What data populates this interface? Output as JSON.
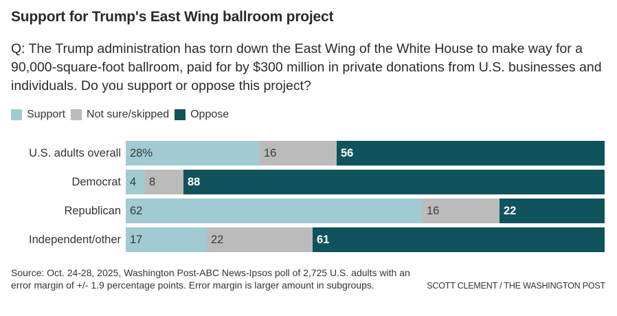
{
  "title": "Support for Trump's East Wing ballroom project",
  "question": "Q: The Trump administration has torn down the East Wing of the White House to make way for a 90,000-square-foot ballroom, paid for by $300 million in private donations from U.S. businesses and individuals. Do you support or oppose this project?",
  "legend": [
    {
      "label": "Support",
      "color": "#a1cad2"
    },
    {
      "label": "Not sure/skipped",
      "color": "#bbbbbb"
    },
    {
      "label": "Oppose",
      "color": "#10535c"
    }
  ],
  "chart_data": {
    "type": "bar",
    "orientation": "horizontal",
    "stacked": true,
    "normalized": true,
    "title": "Support for Trump's East Wing ballroom project",
    "xlabel": "",
    "ylabel": "",
    "xlim": [
      0,
      100
    ],
    "grid": false,
    "legend_position": "top-left",
    "categories": [
      "U.S. adults overall",
      "Democrat",
      "Republican",
      "Independent/other"
    ],
    "series": [
      {
        "name": "Support",
        "color": "#a1cad2",
        "label_color": "#2f3b3f",
        "values": [
          28,
          4,
          62,
          17
        ]
      },
      {
        "name": "Not sure/skipped",
        "color": "#bbbbbb",
        "label_color": "#3a3a3a",
        "values": [
          16,
          8,
          16,
          22
        ]
      },
      {
        "name": "Oppose",
        "color": "#10535c",
        "label_color": "#ffffff",
        "values": [
          56,
          88,
          22,
          61
        ]
      }
    ],
    "value_labels": [
      [
        "28%",
        "16",
        "56"
      ],
      [
        "4",
        "8",
        "88"
      ],
      [
        "62",
        "16",
        "22"
      ],
      [
        "17",
        "22",
        "61"
      ]
    ]
  },
  "source": "Source: Oct. 24-28, 2025, Washington Post-ABC News-Ipsos poll of 2,725 U.S. adults with an error margin of +/- 1.9 percentage points. Error margin is larger amount in subgroups.",
  "credit": "SCOTT CLEMENT / THE WASHINGTON POST"
}
